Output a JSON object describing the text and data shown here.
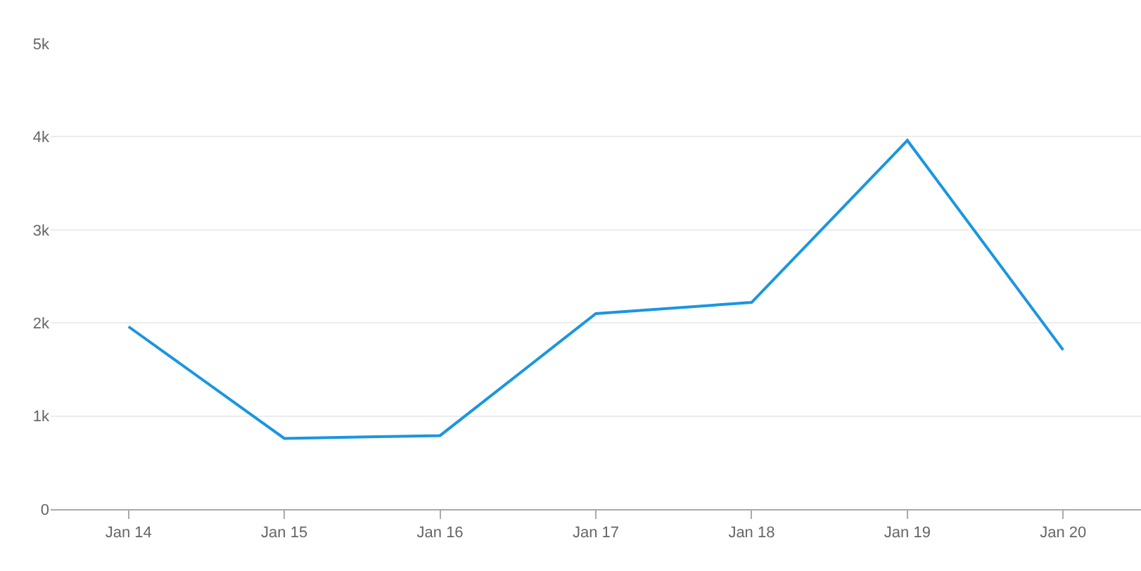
{
  "chart_data": {
    "type": "line",
    "categories": [
      "Jan 14",
      "Jan 15",
      "Jan 16",
      "Jan 17",
      "Jan 18",
      "Jan 19",
      "Jan 20"
    ],
    "series": [
      {
        "color": "#1a96e0",
        "values": [
          1960,
          760,
          790,
          2100,
          2220,
          3960,
          1710
        ]
      }
    ],
    "ylim": [
      0,
      5000
    ],
    "yticks": [
      0,
      {
        "value": 1000,
        "label": "1k"
      },
      {
        "value": 2000,
        "label": "2k"
      },
      {
        "value": 3000,
        "label": "3k"
      },
      {
        "value": 4000,
        "label": "4k"
      },
      {
        "value": 5000,
        "label": "5k"
      }
    ],
    "grid": "y",
    "marker": "none",
    "line_style": "solid"
  }
}
